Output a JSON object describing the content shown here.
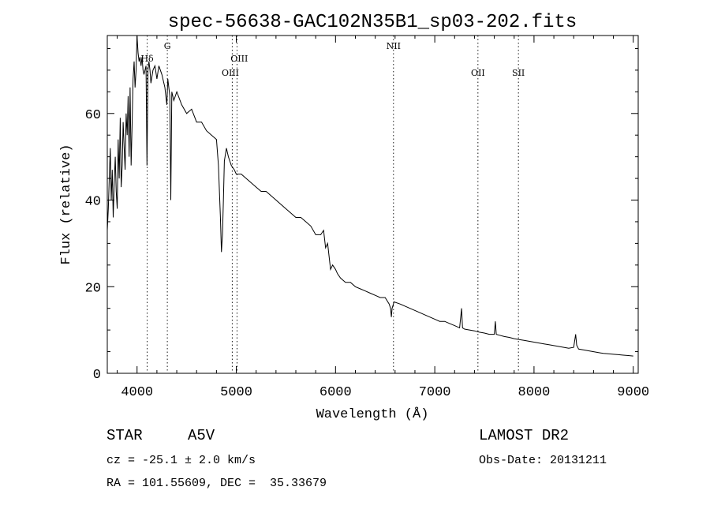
{
  "chart_data": {
    "type": "line",
    "title": "spec-56638-GAC102N35B1_sp03-202.fits",
    "xlabel": "Wavelength (Å)",
    "ylabel": "Flux (relative)",
    "xlim": [
      3700,
      9050
    ],
    "ylim": [
      0,
      78
    ],
    "xticks": [
      4000,
      5000,
      6000,
      7000,
      8000,
      9000
    ],
    "xtick_labels": [
      "4000",
      "5000",
      "6000",
      "7000",
      "8000",
      "9000"
    ],
    "yticks": [
      0,
      20,
      40,
      60
    ],
    "ytick_labels": [
      "0",
      "20",
      "40",
      "60"
    ],
    "grid": false,
    "legend": "none",
    "series": [
      {
        "x": [
          3700,
          3710,
          3720,
          3730,
          3740,
          3750,
          3760,
          3770,
          3780,
          3790,
          3800,
          3810,
          3820,
          3830,
          3840,
          3850,
          3860,
          3870,
          3880,
          3890,
          3900,
          3910,
          3920,
          3930,
          3940,
          3950,
          3960,
          3970,
          3980,
          3990,
          4000,
          4010,
          4020,
          4030,
          4040,
          4050,
          4060,
          4070,
          4080,
          4090,
          4100,
          4110,
          4120,
          4130,
          4140,
          4160,
          4180,
          4200,
          4220,
          4250,
          4280,
          4300,
          4310,
          4330,
          4340,
          4350,
          4370,
          4400,
          4450,
          4500,
          4550,
          4600,
          4650,
          4700,
          4750,
          4800,
          4820,
          4840,
          4850,
          4855,
          4861,
          4870,
          4880,
          4900,
          4920,
          4950,
          4980,
          5000,
          5050,
          5100,
          5150,
          5200,
          5250,
          5300,
          5350,
          5400,
          5450,
          5500,
          5550,
          5600,
          5650,
          5700,
          5750,
          5800,
          5850,
          5880,
          5900,
          5920,
          5950,
          5970,
          6000,
          6020,
          6050,
          6100,
          6150,
          6200,
          6250,
          6300,
          6350,
          6400,
          6450,
          6500,
          6540,
          6555,
          6563,
          6570,
          6590,
          6650,
          6700,
          6750,
          6800,
          6850,
          6900,
          6950,
          7000,
          7050,
          7100,
          7150,
          7200,
          7250,
          7270,
          7280,
          7300,
          7350,
          7400,
          7450,
          7500,
          7550,
          7600,
          7610,
          7620,
          7650,
          7700,
          7750,
          7800,
          7850,
          7900,
          7950,
          8000,
          8050,
          8100,
          8150,
          8200,
          8250,
          8300,
          8350,
          8400,
          8420,
          8430,
          8450,
          8500,
          8550,
          8600,
          8650,
          8700,
          8750,
          8800,
          8850,
          8900,
          8950,
          9000
        ],
        "values": [
          33,
          38,
          45,
          52,
          40,
          47,
          36,
          44,
          50,
          42,
          38,
          54,
          45,
          59,
          43,
          48,
          58,
          52,
          47,
          60,
          55,
          64,
          50,
          66,
          48,
          57,
          68,
          72,
          66,
          70,
          78,
          74,
          72,
          73,
          71,
          73,
          70,
          69,
          70,
          71,
          48,
          70,
          72,
          70,
          67,
          70,
          71,
          68,
          71,
          69,
          66,
          62,
          68,
          64,
          40,
          65,
          63,
          65,
          62,
          60,
          61,
          58,
          58,
          56,
          55,
          54,
          48,
          36,
          28,
          30,
          32,
          40,
          49,
          52,
          50,
          48,
          47,
          46,
          46,
          45,
          44,
          43,
          42,
          42,
          41,
          40,
          39,
          38,
          37,
          36,
          36,
          35,
          34,
          32,
          32,
          33,
          29,
          30,
          24,
          25,
          24,
          23,
          22,
          21,
          21,
          20,
          19.5,
          19,
          18.5,
          18,
          17.5,
          17.5,
          16,
          15,
          13,
          15,
          16.5,
          16,
          15.5,
          15,
          14.5,
          14,
          13.5,
          13,
          12.5,
          12,
          12,
          11.5,
          11,
          10.5,
          15,
          10.5,
          10.2,
          10,
          9.8,
          9.5,
          9.3,
          9,
          9,
          12,
          9,
          8.8,
          8.5,
          8.3,
          8,
          7.8,
          7.6,
          7.4,
          7.2,
          7,
          6.8,
          6.6,
          6.4,
          6.2,
          6,
          5.8,
          6,
          9,
          6.5,
          5.6,
          5.4,
          5.2,
          5,
          4.8,
          4.6,
          4.5,
          4.4,
          4.3,
          4.2,
          4.1,
          4
        ]
      }
    ],
    "lines": [
      {
        "label": "Hδ",
        "x": 4102,
        "lx": 4102,
        "row": 1
      },
      {
        "label": "G",
        "x": 4305,
        "lx": 4305,
        "row": 0
      },
      {
        "label": "OIII",
        "x": 4959,
        "lx": 4940,
        "row": 2
      },
      {
        "label": "OIII",
        "x": 5007,
        "lx": 5030,
        "row": 1
      },
      {
        "label": "NII",
        "x": 6584,
        "lx": 6584,
        "row": 0
      },
      {
        "label": "OII",
        "x": 7435,
        "lx": 7435,
        "row": 2
      },
      {
        "label": "SII",
        "x": 7843,
        "lx": 7843,
        "row": 2
      }
    ]
  },
  "info": {
    "object_class": "STAR",
    "subclass": "A5V",
    "survey": "LAMOST DR2",
    "cz": "cz = -25.1 ± 2.0 km/s",
    "obs_date": "Obs-Date: 20131211",
    "radec": "RA = 101.55609, DEC =  35.33679"
  }
}
